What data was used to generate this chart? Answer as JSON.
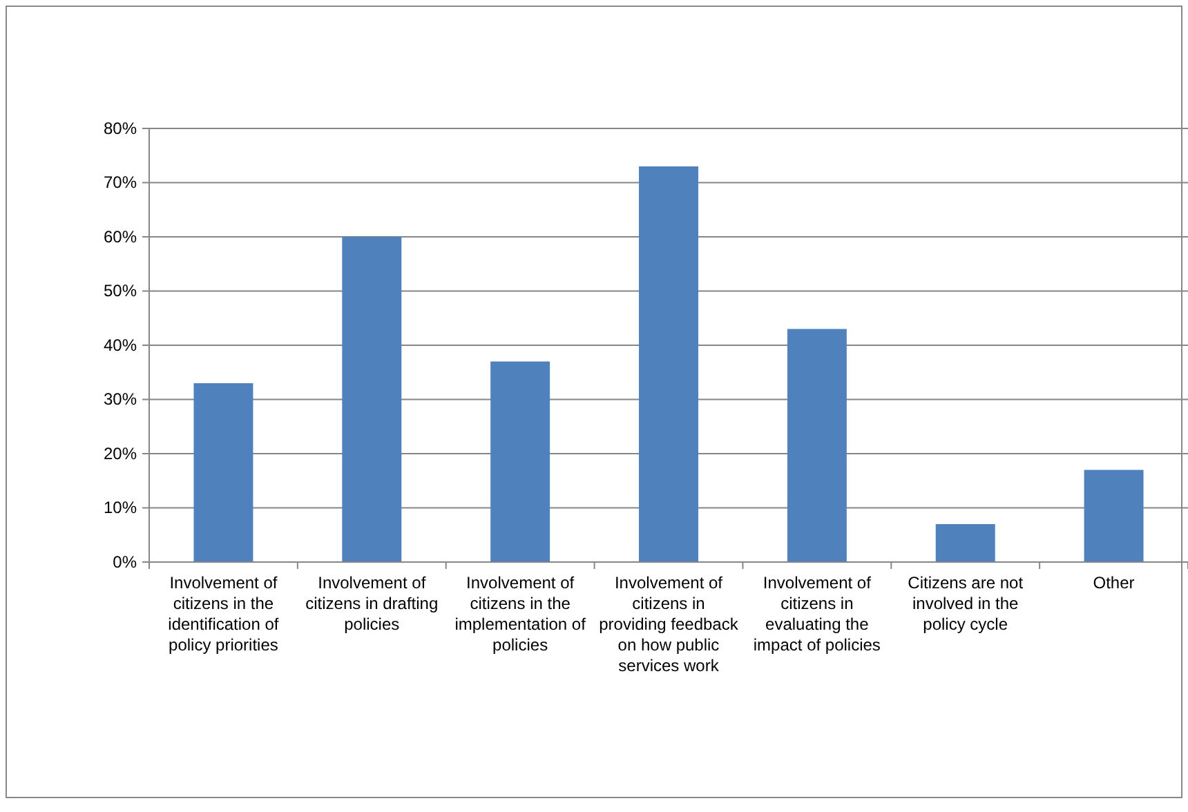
{
  "chart_data": {
    "type": "bar",
    "categories": [
      "Involvement of citizens in the identification of policy priorities",
      "Involvement of citizens in drafting policies",
      "Involvement of citizens in the implementation of policies",
      "Involvement of citizens in providing feedback on how public services work",
      "Involvement of citizens in evaluating the impact of policies",
      "Citizens are not involved in the policy cycle",
      "Other"
    ],
    "values": [
      33,
      60,
      37,
      73,
      43,
      7,
      17
    ],
    "color": "#4f81bd",
    "ylim": [
      0,
      80
    ],
    "yticks": [
      {
        "value": 0,
        "label": "0%"
      },
      {
        "value": 10,
        "label": "10%"
      },
      {
        "value": 20,
        "label": "20%"
      },
      {
        "value": 30,
        "label": "30%"
      },
      {
        "value": 40,
        "label": "40%"
      },
      {
        "value": 50,
        "label": "50%"
      },
      {
        "value": 60,
        "label": "60%"
      },
      {
        "value": 70,
        "label": "70%"
      },
      {
        "value": 80,
        "label": "80%"
      }
    ],
    "grid": "y"
  }
}
